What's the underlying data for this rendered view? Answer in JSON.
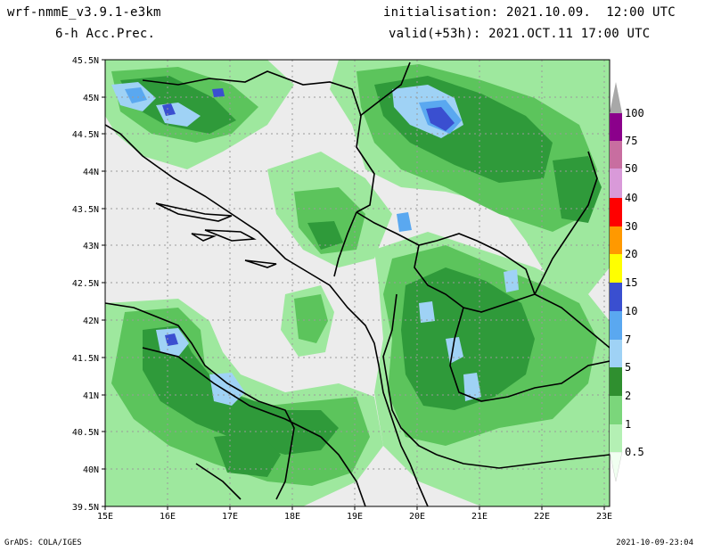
{
  "header": {
    "model": "wrf-nmmE_v3.9.1-e3km",
    "variable": "6-h Acc.Prec.",
    "init": "initialisation: 2021.10.09.  12:00 UTC",
    "valid": "valid(+53h): 2021.OCT.11 17:00 UTC"
  },
  "footer": {
    "credit": "GrADS: COLA/IGES",
    "timestamp": "2021-10-09-23:04"
  },
  "map": {
    "lat_labels": [
      "45.5N",
      "45N",
      "44.5N",
      "44N",
      "43.5N",
      "43N",
      "42.5N",
      "42N",
      "41.5N",
      "41N",
      "40.5N",
      "40N",
      "39.5N"
    ],
    "lon_labels": [
      "15E",
      "16E",
      "17E",
      "18E",
      "19E",
      "20E",
      "21E",
      "22E",
      "23E"
    ],
    "colorbar": {
      "levels": [
        "0.5",
        "1",
        "2",
        "5",
        "7",
        "10",
        "15",
        "20",
        "30",
        "40",
        "50",
        "75",
        "100"
      ],
      "colors": [
        "#b4f0b4",
        "#7bd67b",
        "#3ca33c",
        "#2f8f2f",
        "#9fd2f5",
        "#5aa8f0",
        "#3a4fd0",
        "#ffff00",
        "#ff9900",
        "#ff0000",
        "#d99ad9",
        "#c86ea0",
        "#8b008b",
        "#a8a8a8"
      ]
    },
    "colors": {
      "background": "#ececec",
      "light_green": "#9ee89e",
      "mid_green": "#5cc45c",
      "dark_green": "#2f9a3a",
      "light_blue": "#9fd2f5",
      "mid_blue": "#5aa8f0",
      "dark_blue": "#3a4fd0"
    }
  }
}
